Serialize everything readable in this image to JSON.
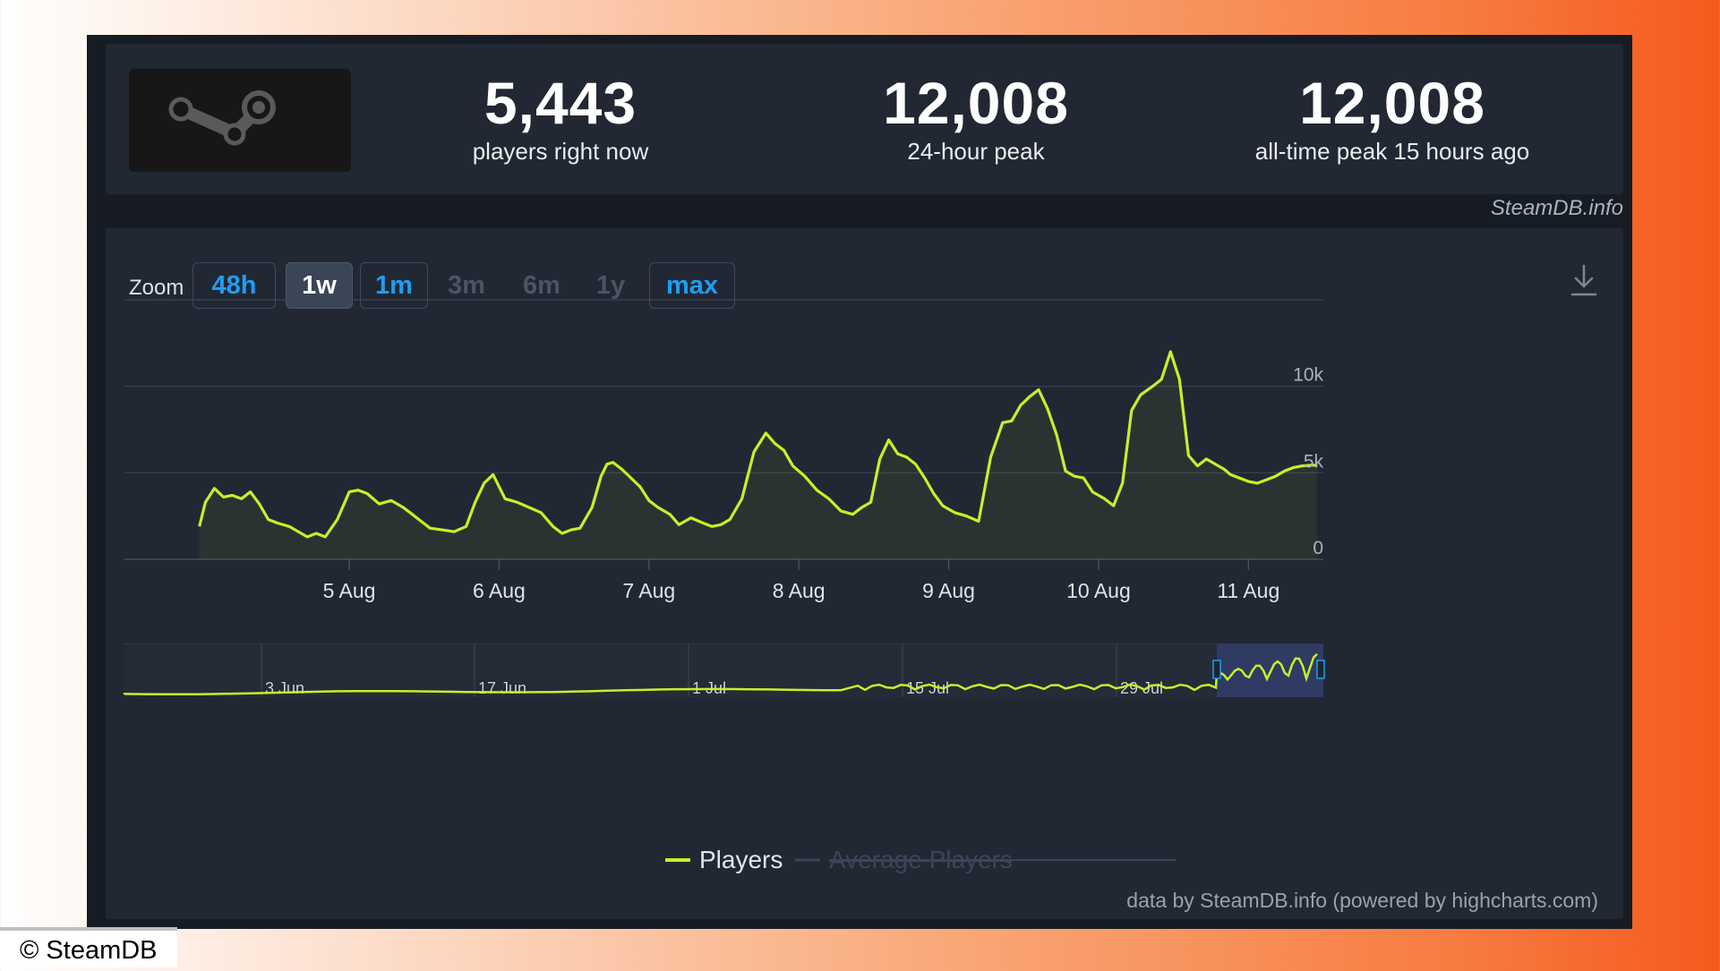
{
  "stats": [
    {
      "value": "5,443",
      "label": "players right now"
    },
    {
      "value": "12,008",
      "label": "24-hour peak"
    },
    {
      "value": "12,008",
      "label": "all-time peak 15 hours ago"
    }
  ],
  "logo_icon": "steam-logo-icon",
  "credit_top": "SteamDB.info",
  "zoom": {
    "label": "Zoom",
    "buttons": [
      {
        "label": "48h",
        "state": "enabled"
      },
      {
        "label": "1w",
        "state": "active"
      },
      {
        "label": "1m",
        "state": "enabled"
      },
      {
        "label": "3m",
        "state": "disabled"
      },
      {
        "label": "6m",
        "state": "disabled"
      },
      {
        "label": "1y",
        "state": "disabled"
      },
      {
        "label": "max",
        "state": "enabled"
      }
    ]
  },
  "download_icon": "download-icon",
  "colors": {
    "line": "#c6f029",
    "accent": "#1f9df2",
    "navigator_selection": "#313e6b"
  },
  "chart_data": {
    "type": "line",
    "series": [
      {
        "name": "Players",
        "x": [
          4.0,
          4.04,
          4.1,
          4.16,
          4.22,
          4.28,
          4.34,
          4.4,
          4.46,
          4.52,
          4.6,
          4.66,
          4.72,
          4.78,
          4.84,
          4.92,
          5.0,
          5.06,
          5.12,
          5.2,
          5.28,
          5.36,
          5.42,
          5.48,
          5.54,
          5.62,
          5.7,
          5.78,
          5.84,
          5.9,
          5.96,
          6.04,
          6.12,
          6.2,
          6.28,
          6.36,
          6.42,
          6.48,
          6.54,
          6.62,
          6.68,
          6.72,
          6.76,
          6.82,
          6.88,
          6.94,
          7.0,
          7.06,
          7.14,
          7.2,
          7.28,
          7.36,
          7.42,
          7.48,
          7.54,
          7.62,
          7.7,
          7.78,
          7.84,
          7.9,
          7.96,
          8.04,
          8.12,
          8.2,
          8.28,
          8.36,
          8.42,
          8.48,
          8.54,
          8.6,
          8.66,
          8.72,
          8.78,
          8.84,
          8.9,
          8.96,
          9.04,
          9.12,
          9.2,
          9.28,
          9.36,
          9.42,
          9.48,
          9.54,
          9.6,
          9.66,
          9.72,
          9.78,
          9.84,
          9.9,
          9.96,
          10.04,
          10.1,
          10.16,
          10.22,
          10.28,
          10.36,
          10.42,
          10.48,
          10.54,
          10.6,
          10.66,
          10.72,
          10.78,
          10.84,
          10.88,
          10.94,
          11.0,
          11.06,
          11.12,
          11.18,
          11.24,
          11.3,
          11.36,
          11.42,
          11.46
        ],
        "values": [
          1900,
          3300,
          4100,
          3600,
          3700,
          3500,
          3900,
          3200,
          2300,
          2100,
          1900,
          1600,
          1300,
          1500,
          1300,
          2300,
          3900,
          4000,
          3800,
          3200,
          3400,
          3000,
          2600,
          2200,
          1800,
          1700,
          1600,
          1900,
          3300,
          4400,
          4900,
          3500,
          3300,
          3000,
          2700,
          1900,
          1500,
          1700,
          1800,
          3000,
          4800,
          5500,
          5600,
          5200,
          4700,
          4200,
          3400,
          3000,
          2600,
          2000,
          2400,
          2100,
          1900,
          2000,
          2300,
          3500,
          6200,
          7300,
          6700,
          6300,
          5400,
          4800,
          4000,
          3500,
          2800,
          2600,
          3000,
          3300,
          5800,
          6900,
          6100,
          5900,
          5500,
          4700,
          3800,
          3100,
          2700,
          2500,
          2200,
          5900,
          7900,
          8000,
          8900,
          9400,
          9800,
          8700,
          7200,
          5100,
          4800,
          4700,
          3900,
          3500,
          3100,
          4400,
          8600,
          9500,
          10000,
          10400,
          12000,
          10400,
          6000,
          5400,
          5800,
          5500,
          5200,
          4900,
          4700,
          4500,
          4400,
          4600,
          4800,
          5100,
          5300,
          5400,
          5443,
          5443
        ],
        "xlabel_ticks": [
          "5 Aug",
          "6 Aug",
          "7 Aug",
          "8 Aug",
          "9 Aug",
          "10 Aug",
          "11 Aug"
        ]
      },
      {
        "name": "Average Players",
        "visible": false
      }
    ],
    "y_ticks": [
      "10k",
      "5k",
      "0"
    ],
    "ylim": [
      0,
      15000
    ],
    "grid": true,
    "navigator": {
      "ticks": [
        "3 Jun",
        "17 Jun",
        "1 Jul",
        "15 Jul",
        "29 Jul"
      ],
      "selected_range": "1w"
    },
    "legend": [
      {
        "name": "Players",
        "enabled": true
      },
      {
        "name": "Average Players",
        "enabled": false
      }
    ],
    "legend_position": "bottom-center"
  },
  "credit_bottom": "data by SteamDB.info (powered by highcharts.com)",
  "copyright": "© SteamDB"
}
